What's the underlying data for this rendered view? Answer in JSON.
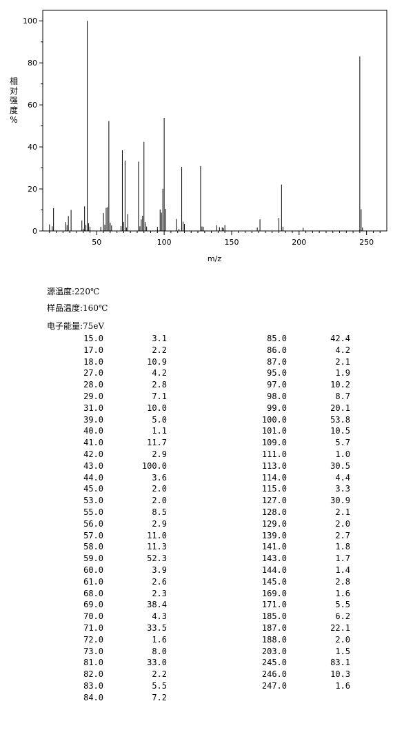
{
  "chart_data": {
    "type": "bar",
    "xlabel": "m/z",
    "ylabel": "相对强度%",
    "xlim": [
      10,
      265
    ],
    "ylim": [
      0,
      105
    ],
    "xticks": [
      50,
      100,
      150,
      200,
      250
    ],
    "yticks": [
      0,
      20,
      40,
      60,
      80,
      100
    ],
    "grid": false,
    "peaks": [
      {
        "mz": 15,
        "i": 3.1
      },
      {
        "mz": 17,
        "i": 2.2
      },
      {
        "mz": 18,
        "i": 10.9
      },
      {
        "mz": 27,
        "i": 4.2
      },
      {
        "mz": 28,
        "i": 2.8
      },
      {
        "mz": 29,
        "i": 7.1
      },
      {
        "mz": 31,
        "i": 10.0
      },
      {
        "mz": 39,
        "i": 5.0
      },
      {
        "mz": 40,
        "i": 1.1
      },
      {
        "mz": 41,
        "i": 11.7
      },
      {
        "mz": 42,
        "i": 2.9
      },
      {
        "mz": 43,
        "i": 100.0
      },
      {
        "mz": 44,
        "i": 3.6
      },
      {
        "mz": 45,
        "i": 2.0
      },
      {
        "mz": 53,
        "i": 2.0
      },
      {
        "mz": 55,
        "i": 8.5
      },
      {
        "mz": 56,
        "i": 2.9
      },
      {
        "mz": 57,
        "i": 11.0
      },
      {
        "mz": 58,
        "i": 11.3
      },
      {
        "mz": 59,
        "i": 52.3
      },
      {
        "mz": 60,
        "i": 3.9
      },
      {
        "mz": 61,
        "i": 2.6
      },
      {
        "mz": 68,
        "i": 2.3
      },
      {
        "mz": 69,
        "i": 38.4
      },
      {
        "mz": 70,
        "i": 4.3
      },
      {
        "mz": 71,
        "i": 33.5
      },
      {
        "mz": 72,
        "i": 1.6
      },
      {
        "mz": 73,
        "i": 8.0
      },
      {
        "mz": 81,
        "i": 33.0
      },
      {
        "mz": 82,
        "i": 2.2
      },
      {
        "mz": 83,
        "i": 5.5
      },
      {
        "mz": 84,
        "i": 7.2
      },
      {
        "mz": 85,
        "i": 42.4
      },
      {
        "mz": 86,
        "i": 4.2
      },
      {
        "mz": 87,
        "i": 2.1
      },
      {
        "mz": 95,
        "i": 1.9
      },
      {
        "mz": 97,
        "i": 10.2
      },
      {
        "mz": 98,
        "i": 8.7
      },
      {
        "mz": 99,
        "i": 20.1
      },
      {
        "mz": 100,
        "i": 53.8
      },
      {
        "mz": 101,
        "i": 10.5
      },
      {
        "mz": 109,
        "i": 5.7
      },
      {
        "mz": 111,
        "i": 1.0
      },
      {
        "mz": 113,
        "i": 30.5
      },
      {
        "mz": 114,
        "i": 4.4
      },
      {
        "mz": 115,
        "i": 3.3
      },
      {
        "mz": 127,
        "i": 30.9
      },
      {
        "mz": 128,
        "i": 2.1
      },
      {
        "mz": 129,
        "i": 2.0
      },
      {
        "mz": 139,
        "i": 2.7
      },
      {
        "mz": 141,
        "i": 1.8
      },
      {
        "mz": 143,
        "i": 1.7
      },
      {
        "mz": 144,
        "i": 1.4
      },
      {
        "mz": 145,
        "i": 2.8
      },
      {
        "mz": 169,
        "i": 1.6
      },
      {
        "mz": 171,
        "i": 5.5
      },
      {
        "mz": 185,
        "i": 6.2
      },
      {
        "mz": 187,
        "i": 22.1
      },
      {
        "mz": 188,
        "i": 2.0
      },
      {
        "mz": 203,
        "i": 1.5
      },
      {
        "mz": 245,
        "i": 83.1
      },
      {
        "mz": 246,
        "i": 10.3
      },
      {
        "mz": 247,
        "i": 1.6
      }
    ]
  },
  "conditions": {
    "source_temp": "源温度:220℃",
    "sample_temp": "样品温度:160℃",
    "electron_energy": "电子能量:75eV"
  },
  "table": {
    "left": [
      {
        "mz": "15.0",
        "ab": "3.1"
      },
      {
        "mz": "17.0",
        "ab": "2.2"
      },
      {
        "mz": "18.0",
        "ab": "10.9"
      },
      {
        "mz": "27.0",
        "ab": "4.2"
      },
      {
        "mz": "28.0",
        "ab": "2.8"
      },
      {
        "mz": "29.0",
        "ab": "7.1"
      },
      {
        "mz": "31.0",
        "ab": "10.0"
      },
      {
        "mz": "39.0",
        "ab": "5.0"
      },
      {
        "mz": "40.0",
        "ab": "1.1"
      },
      {
        "mz": "41.0",
        "ab": "11.7"
      },
      {
        "mz": "42.0",
        "ab": "2.9"
      },
      {
        "mz": "43.0",
        "ab": "100.0"
      },
      {
        "mz": "44.0",
        "ab": "3.6"
      },
      {
        "mz": "45.0",
        "ab": "2.0"
      },
      {
        "mz": "53.0",
        "ab": "2.0"
      },
      {
        "mz": "55.0",
        "ab": "8.5"
      },
      {
        "mz": "56.0",
        "ab": "2.9"
      },
      {
        "mz": "57.0",
        "ab": "11.0"
      },
      {
        "mz": "58.0",
        "ab": "11.3"
      },
      {
        "mz": "59.0",
        "ab": "52.3"
      },
      {
        "mz": "60.0",
        "ab": "3.9"
      },
      {
        "mz": "61.0",
        "ab": "2.6"
      },
      {
        "mz": "68.0",
        "ab": "2.3"
      },
      {
        "mz": "69.0",
        "ab": "38.4"
      },
      {
        "mz": "70.0",
        "ab": "4.3"
      },
      {
        "mz": "71.0",
        "ab": "33.5"
      },
      {
        "mz": "72.0",
        "ab": "1.6"
      },
      {
        "mz": "73.0",
        "ab": "8.0"
      },
      {
        "mz": "81.0",
        "ab": "33.0"
      },
      {
        "mz": "82.0",
        "ab": "2.2"
      },
      {
        "mz": "83.0",
        "ab": "5.5"
      },
      {
        "mz": "84.0",
        "ab": "7.2"
      }
    ],
    "right": [
      {
        "mz": "85.0",
        "ab": "42.4"
      },
      {
        "mz": "86.0",
        "ab": "4.2"
      },
      {
        "mz": "87.0",
        "ab": "2.1"
      },
      {
        "mz": "95.0",
        "ab": "1.9"
      },
      {
        "mz": "97.0",
        "ab": "10.2"
      },
      {
        "mz": "98.0",
        "ab": "8.7"
      },
      {
        "mz": "99.0",
        "ab": "20.1"
      },
      {
        "mz": "100.0",
        "ab": "53.8"
      },
      {
        "mz": "101.0",
        "ab": "10.5"
      },
      {
        "mz": "109.0",
        "ab": "5.7"
      },
      {
        "mz": "111.0",
        "ab": "1.0"
      },
      {
        "mz": "113.0",
        "ab": "30.5"
      },
      {
        "mz": "114.0",
        "ab": "4.4"
      },
      {
        "mz": "115.0",
        "ab": "3.3"
      },
      {
        "mz": "127.0",
        "ab": "30.9"
      },
      {
        "mz": "128.0",
        "ab": "2.1"
      },
      {
        "mz": "129.0",
        "ab": "2.0"
      },
      {
        "mz": "139.0",
        "ab": "2.7"
      },
      {
        "mz": "141.0",
        "ab": "1.8"
      },
      {
        "mz": "143.0",
        "ab": "1.7"
      },
      {
        "mz": "144.0",
        "ab": "1.4"
      },
      {
        "mz": "145.0",
        "ab": "2.8"
      },
      {
        "mz": "169.0",
        "ab": "1.6"
      },
      {
        "mz": "171.0",
        "ab": "5.5"
      },
      {
        "mz": "185.0",
        "ab": "6.2"
      },
      {
        "mz": "187.0",
        "ab": "22.1"
      },
      {
        "mz": "188.0",
        "ab": "2.0"
      },
      {
        "mz": "203.0",
        "ab": "1.5"
      },
      {
        "mz": "245.0",
        "ab": "83.1"
      },
      {
        "mz": "246.0",
        "ab": "10.3"
      },
      {
        "mz": "247.0",
        "ab": "1.6"
      }
    ]
  }
}
